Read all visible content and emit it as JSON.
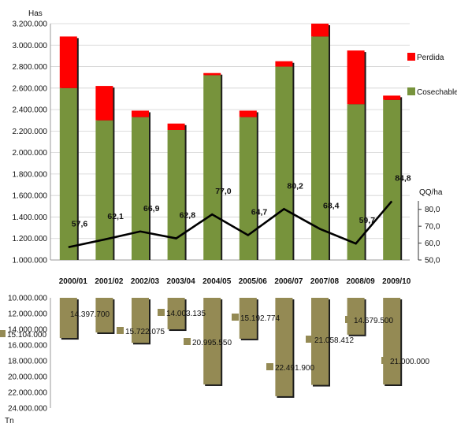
{
  "chart_data": [
    {
      "type": "bar",
      "stacked": true,
      "ylabel": "Has",
      "ylim": [
        1000000,
        3200000
      ],
      "yticks": [
        "1.000.000",
        "1.200.000",
        "1.400.000",
        "1.600.000",
        "1.800.000",
        "2.000.000",
        "2.200.000",
        "2.400.000",
        "2.600.000",
        "2.800.000",
        "3.000.000",
        "3.200.000"
      ],
      "categories": [
        "2000/01",
        "2001/02",
        "2002/03",
        "2003/04",
        "2004/05",
        "2005/06",
        "2006/07",
        "2007/08",
        "2008/09",
        "2009/10"
      ],
      "grid": true,
      "legend_position": "right",
      "series": [
        {
          "name": "Cosechable",
          "color": "#77933c",
          "values": [
            2600000,
            2300000,
            2330000,
            2210000,
            2720000,
            2330000,
            2800000,
            3080000,
            2450000,
            2490000
          ]
        },
        {
          "name": "Perdida",
          "color": "#ff0000",
          "values": [
            480000,
            320000,
            60000,
            60000,
            20000,
            60000,
            50000,
            120000,
            500000,
            40000
          ]
        }
      ],
      "secondary_axis": {
        "label": "QQ/ha",
        "ylim": [
          50,
          85
        ],
        "yticks": [
          "50,0",
          "60,0",
          "70,0",
          "80,0"
        ],
        "series": {
          "type": "line",
          "color": "#000000",
          "values": [
            57.6,
            62.1,
            66.9,
            62.8,
            77.0,
            64.7,
            80.2,
            68.4,
            59.7,
            84.8
          ],
          "labels": [
            "57,6",
            "62,1",
            "66,9",
            "62,8",
            "77,0",
            "64,7",
            "80,2",
            "68,4",
            "59,7",
            "84,8"
          ]
        }
      }
    },
    {
      "type": "bar",
      "orientation": "downward",
      "ylabel": "Tn",
      "ylim": [
        10000000,
        24000000
      ],
      "yticks": [
        "10.000.000",
        "12.000.000",
        "14.000.000",
        "16.000.000",
        "18.000.000",
        "20.000.000",
        "22.000.000",
        "24.000.000"
      ],
      "categories": [
        "2000/01",
        "2001/02",
        "2002/03",
        "2003/04",
        "2004/05",
        "2005/06",
        "2006/07",
        "2007/08",
        "2008/09",
        "2009/10"
      ],
      "series": [
        {
          "color": "#948a54",
          "values": [
            15104000,
            14397700,
            15722075,
            14003135,
            20995550,
            15192774,
            22491900,
            21058412,
            14679500,
            21000000
          ],
          "labels": [
            "15.104.000",
            "14.397.700",
            "15.722.075",
            "14.003.135",
            "20.995.550",
            "15.192.774",
            "22.491.900",
            "21.058.412",
            "14.679.500",
            "21.000.000"
          ]
        }
      ]
    }
  ]
}
